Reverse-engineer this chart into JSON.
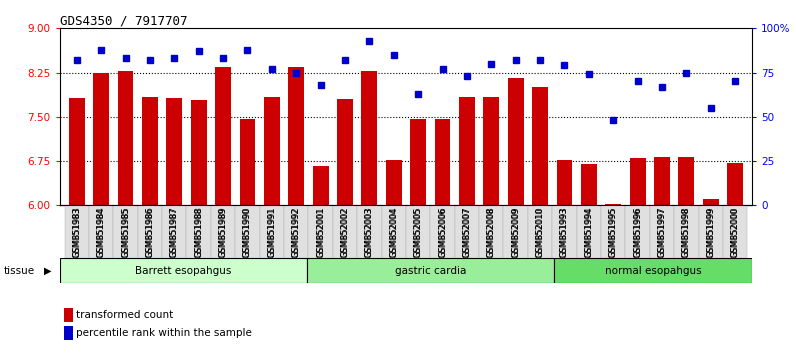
{
  "title": "GDS4350 / 7917707",
  "samples": [
    "GSM851983",
    "GSM851984",
    "GSM851985",
    "GSM851986",
    "GSM851987",
    "GSM851988",
    "GSM851989",
    "GSM851990",
    "GSM851991",
    "GSM851992",
    "GSM852001",
    "GSM852002",
    "GSM852003",
    "GSM852004",
    "GSM852005",
    "GSM852006",
    "GSM852007",
    "GSM852008",
    "GSM852009",
    "GSM852010",
    "GSM851993",
    "GSM851994",
    "GSM851995",
    "GSM851996",
    "GSM851997",
    "GSM851998",
    "GSM851999",
    "GSM852000"
  ],
  "bar_values": [
    7.82,
    8.25,
    8.28,
    7.84,
    7.82,
    7.78,
    8.35,
    7.47,
    7.84,
    8.35,
    6.67,
    7.8,
    8.28,
    6.77,
    7.47,
    7.47,
    7.84,
    7.84,
    8.16,
    8.0,
    6.77,
    6.7,
    6.02,
    6.8,
    6.82,
    6.82,
    6.1,
    6.72
  ],
  "pct_values": [
    82,
    88,
    83,
    82,
    83,
    87,
    83,
    88,
    77,
    75,
    68,
    82,
    93,
    85,
    63,
    77,
    73,
    80,
    82,
    82,
    79,
    74,
    48,
    70,
    67,
    75,
    55,
    70
  ],
  "groups": [
    {
      "label": "Barrett esopahgus",
      "start": 0,
      "end": 10,
      "color": "#ccffcc"
    },
    {
      "label": "gastric cardia",
      "start": 10,
      "end": 20,
      "color": "#99ee99"
    },
    {
      "label": "normal esopahgus",
      "start": 20,
      "end": 28,
      "color": "#66dd66"
    }
  ],
  "ylim_left": [
    6,
    9
  ],
  "ylim_right": [
    0,
    100
  ],
  "yticks_left": [
    6,
    6.75,
    7.5,
    8.25,
    9
  ],
  "yticks_right": [
    0,
    25,
    50,
    75,
    100
  ],
  "ytick_right_labels": [
    "0",
    "25",
    "50",
    "75",
    "100%"
  ],
  "bar_color": "#cc0000",
  "dot_color": "#0000cc",
  "background_color": "#ffffff",
  "legend_bar_label": "transformed count",
  "legend_dot_label": "percentile rank within the sample",
  "tissue_label": "tissue"
}
